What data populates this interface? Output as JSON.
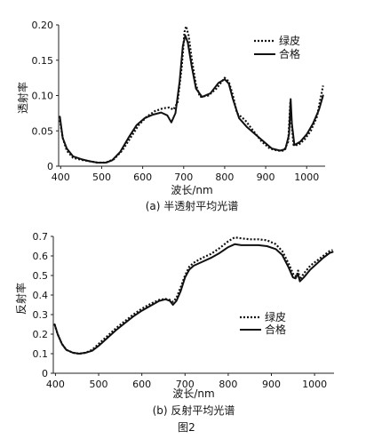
{
  "figure_label": "图2",
  "chart_data": [
    {
      "type": "line",
      "caption": "(a) 半透射平均光谱",
      "xlabel": "波长/nm",
      "ylabel": "透射率",
      "xlim": [
        395,
        1045
      ],
      "ylim": [
        0,
        0.2
      ],
      "xticks": [
        400,
        500,
        600,
        700,
        800,
        900,
        1000
      ],
      "yticks": [
        0,
        0.05,
        0.1,
        0.15,
        0.2
      ],
      "ytick_labels": [
        "0",
        "0.05",
        "0.10",
        "0.15",
        "0.20"
      ],
      "legend_position": "top-right",
      "series": [
        {
          "name": "绿皮",
          "style": "dotted",
          "points": [
            [
              398,
              0.065
            ],
            [
              405,
              0.04
            ],
            [
              415,
              0.022
            ],
            [
              430,
              0.012
            ],
            [
              450,
              0.009
            ],
            [
              470,
              0.007
            ],
            [
              490,
              0.005
            ],
            [
              510,
              0.005
            ],
            [
              530,
              0.01
            ],
            [
              550,
              0.022
            ],
            [
              570,
              0.04
            ],
            [
              590,
              0.058
            ],
            [
              610,
              0.07
            ],
            [
              630,
              0.078
            ],
            [
              650,
              0.082
            ],
            [
              665,
              0.083
            ],
            [
              675,
              0.08
            ],
            [
              685,
              0.09
            ],
            [
              695,
              0.14
            ],
            [
              702,
              0.19
            ],
            [
              706,
              0.198
            ],
            [
              712,
              0.185
            ],
            [
              720,
              0.15
            ],
            [
              730,
              0.115
            ],
            [
              740,
              0.098
            ],
            [
              760,
              0.1
            ],
            [
              780,
              0.11
            ],
            [
              800,
              0.125
            ],
            [
              810,
              0.12
            ],
            [
              820,
              0.1
            ],
            [
              830,
              0.075
            ],
            [
              850,
              0.065
            ],
            [
              870,
              0.05
            ],
            [
              890,
              0.035
            ],
            [
              910,
              0.025
            ],
            [
              930,
              0.022
            ],
            [
              945,
              0.022
            ],
            [
              955,
              0.035
            ],
            [
              960,
              0.09
            ],
            [
              963,
              0.06
            ],
            [
              968,
              0.03
            ],
            [
              980,
              0.03
            ],
            [
              995,
              0.038
            ],
            [
              1010,
              0.05
            ],
            [
              1025,
              0.07
            ],
            [
              1040,
              0.114
            ]
          ]
        },
        {
          "name": "合格",
          "style": "solid",
          "points": [
            [
              398,
              0.07
            ],
            [
              405,
              0.04
            ],
            [
              415,
              0.025
            ],
            [
              430,
              0.014
            ],
            [
              450,
              0.01
            ],
            [
              470,
              0.007
            ],
            [
              490,
              0.005
            ],
            [
              510,
              0.005
            ],
            [
              525,
              0.008
            ],
            [
              545,
              0.02
            ],
            [
              565,
              0.04
            ],
            [
              585,
              0.058
            ],
            [
              605,
              0.068
            ],
            [
              625,
              0.073
            ],
            [
              645,
              0.076
            ],
            [
              660,
              0.072
            ],
            [
              670,
              0.062
            ],
            [
              680,
              0.075
            ],
            [
              690,
              0.12
            ],
            [
              698,
              0.17
            ],
            [
              704,
              0.185
            ],
            [
              710,
              0.175
            ],
            [
              720,
              0.14
            ],
            [
              730,
              0.11
            ],
            [
              745,
              0.098
            ],
            [
              765,
              0.103
            ],
            [
              785,
              0.118
            ],
            [
              800,
              0.123
            ],
            [
              810,
              0.117
            ],
            [
              820,
              0.095
            ],
            [
              835,
              0.068
            ],
            [
              855,
              0.055
            ],
            [
              875,
              0.045
            ],
            [
              895,
              0.035
            ],
            [
              915,
              0.025
            ],
            [
              935,
              0.022
            ],
            [
              948,
              0.024
            ],
            [
              957,
              0.045
            ],
            [
              961,
              0.095
            ],
            [
              964,
              0.06
            ],
            [
              970,
              0.03
            ],
            [
              985,
              0.035
            ],
            [
              1000,
              0.045
            ],
            [
              1015,
              0.06
            ],
            [
              1030,
              0.08
            ],
            [
              1040,
              0.1
            ]
          ]
        }
      ]
    },
    {
      "type": "line",
      "caption": "(b) 反射平均光谱",
      "xlabel": "波长/nm",
      "ylabel": "反射率",
      "xlim": [
        395,
        1045
      ],
      "ylim": [
        0,
        0.7
      ],
      "xticks": [
        400,
        500,
        600,
        700,
        800,
        900,
        1000
      ],
      "yticks": [
        0,
        0.1,
        0.2,
        0.3,
        0.4,
        0.5,
        0.6,
        0.7
      ],
      "ytick_labels": [
        "0",
        "0.1",
        "0.2",
        "0.3",
        "0.4",
        "0.5",
        "0.6",
        "0.7"
      ],
      "legend_position": "right",
      "series": [
        {
          "name": "绿皮",
          "style": "dotted",
          "points": [
            [
              398,
              0.25
            ],
            [
              405,
              0.2
            ],
            [
              415,
              0.15
            ],
            [
              425,
              0.12
            ],
            [
              440,
              0.105
            ],
            [
              455,
              0.1
            ],
            [
              470,
              0.105
            ],
            [
              485,
              0.12
            ],
            [
              500,
              0.15
            ],
            [
              520,
              0.19
            ],
            [
              540,
              0.23
            ],
            [
              560,
              0.265
            ],
            [
              580,
              0.3
            ],
            [
              600,
              0.33
            ],
            [
              620,
              0.355
            ],
            [
              640,
              0.375
            ],
            [
              655,
              0.38
            ],
            [
              665,
              0.375
            ],
            [
              672,
              0.365
            ],
            [
              680,
              0.385
            ],
            [
              690,
              0.44
            ],
            [
              700,
              0.5
            ],
            [
              710,
              0.545
            ],
            [
              720,
              0.565
            ],
            [
              740,
              0.59
            ],
            [
              760,
              0.61
            ],
            [
              780,
              0.64
            ],
            [
              800,
              0.675
            ],
            [
              815,
              0.695
            ],
            [
              830,
              0.69
            ],
            [
              850,
              0.685
            ],
            [
              870,
              0.685
            ],
            [
              890,
              0.68
            ],
            [
              910,
              0.66
            ],
            [
              925,
              0.625
            ],
            [
              940,
              0.56
            ],
            [
              952,
              0.5
            ],
            [
              958,
              0.495
            ],
            [
              962,
              0.525
            ],
            [
              966,
              0.48
            ],
            [
              975,
              0.51
            ],
            [
              990,
              0.55
            ],
            [
              1005,
              0.575
            ],
            [
              1020,
              0.6
            ],
            [
              1035,
              0.625
            ],
            [
              1042,
              0.63
            ]
          ]
        },
        {
          "name": "合格",
          "style": "solid",
          "points": [
            [
              398,
              0.25
            ],
            [
              405,
              0.2
            ],
            [
              415,
              0.15
            ],
            [
              425,
              0.12
            ],
            [
              440,
              0.105
            ],
            [
              455,
              0.1
            ],
            [
              470,
              0.105
            ],
            [
              485,
              0.115
            ],
            [
              500,
              0.14
            ],
            [
              520,
              0.18
            ],
            [
              540,
              0.22
            ],
            [
              560,
              0.255
            ],
            [
              580,
              0.29
            ],
            [
              600,
              0.32
            ],
            [
              620,
              0.345
            ],
            [
              640,
              0.37
            ],
            [
              655,
              0.378
            ],
            [
              665,
              0.37
            ],
            [
              672,
              0.35
            ],
            [
              680,
              0.37
            ],
            [
              690,
              0.42
            ],
            [
              700,
              0.49
            ],
            [
              710,
              0.53
            ],
            [
              720,
              0.55
            ],
            [
              740,
              0.57
            ],
            [
              760,
              0.59
            ],
            [
              780,
              0.615
            ],
            [
              800,
              0.645
            ],
            [
              815,
              0.66
            ],
            [
              830,
              0.655
            ],
            [
              850,
              0.655
            ],
            [
              870,
              0.655
            ],
            [
              890,
              0.65
            ],
            [
              910,
              0.635
            ],
            [
              925,
              0.605
            ],
            [
              940,
              0.54
            ],
            [
              950,
              0.49
            ],
            [
              956,
              0.485
            ],
            [
              961,
              0.51
            ],
            [
              966,
              0.47
            ],
            [
              975,
              0.49
            ],
            [
              990,
              0.53
            ],
            [
              1005,
              0.56
            ],
            [
              1020,
              0.59
            ],
            [
              1035,
              0.615
            ],
            [
              1042,
              0.62
            ]
          ]
        }
      ]
    }
  ]
}
